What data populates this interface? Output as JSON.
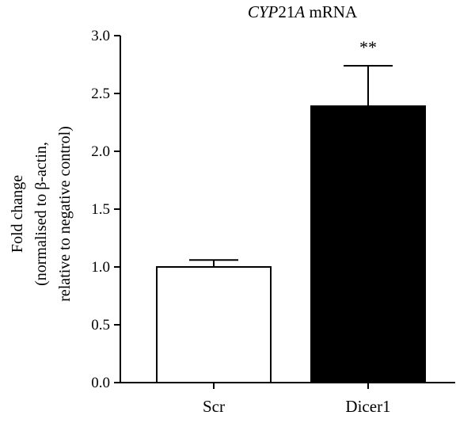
{
  "chart_data": {
    "type": "bar",
    "title_parts": [
      {
        "text": "CYP",
        "italic": true
      },
      {
        "text": "21",
        "italic": false
      },
      {
        "text": "A",
        "italic": true
      },
      {
        "text": " mRNA",
        "italic": false
      }
    ],
    "ylabel_lines": [
      "Fold change",
      "(normalised to β-actin,",
      "relative to negative control)"
    ],
    "xlabel": "",
    "categories": [
      "Scr",
      "Dicer1"
    ],
    "values": [
      1.0,
      2.39
    ],
    "errors": [
      0.06,
      0.35
    ],
    "annotations": [
      "",
      "**"
    ],
    "bar_colors": [
      "#ffffff",
      "#000000"
    ],
    "ylim": [
      0.0,
      3.0
    ],
    "yticks": [
      "0.0",
      "0.5",
      "1.0",
      "1.5",
      "2.0",
      "2.5",
      "3.0"
    ],
    "grid": false
  }
}
